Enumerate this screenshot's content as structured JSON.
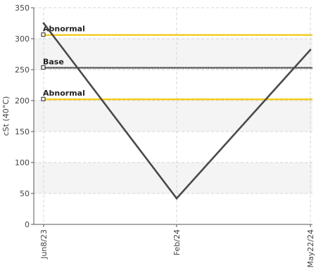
{
  "chart_data": {
    "type": "line",
    "ylabel": "cSt (40°C)",
    "ylim": [
      0,
      350
    ],
    "yticks": [
      0,
      50,
      100,
      150,
      200,
      250,
      300,
      350
    ],
    "categories": [
      "Jun8/23",
      "Feb/24",
      "May22/24"
    ],
    "series": [
      {
        "values": [
          325,
          42,
          282
        ],
        "color": "#4a4a4a"
      }
    ],
    "reference_lines": [
      {
        "label": "Abnormal",
        "value": 306,
        "color": "#f2c500"
      },
      {
        "label": "Base",
        "value": 253,
        "color": "#555555"
      },
      {
        "label": "Abnormal",
        "value": 202,
        "color": "#f2c500"
      }
    ],
    "grid": true,
    "band_fill": "#f4f4f4"
  }
}
